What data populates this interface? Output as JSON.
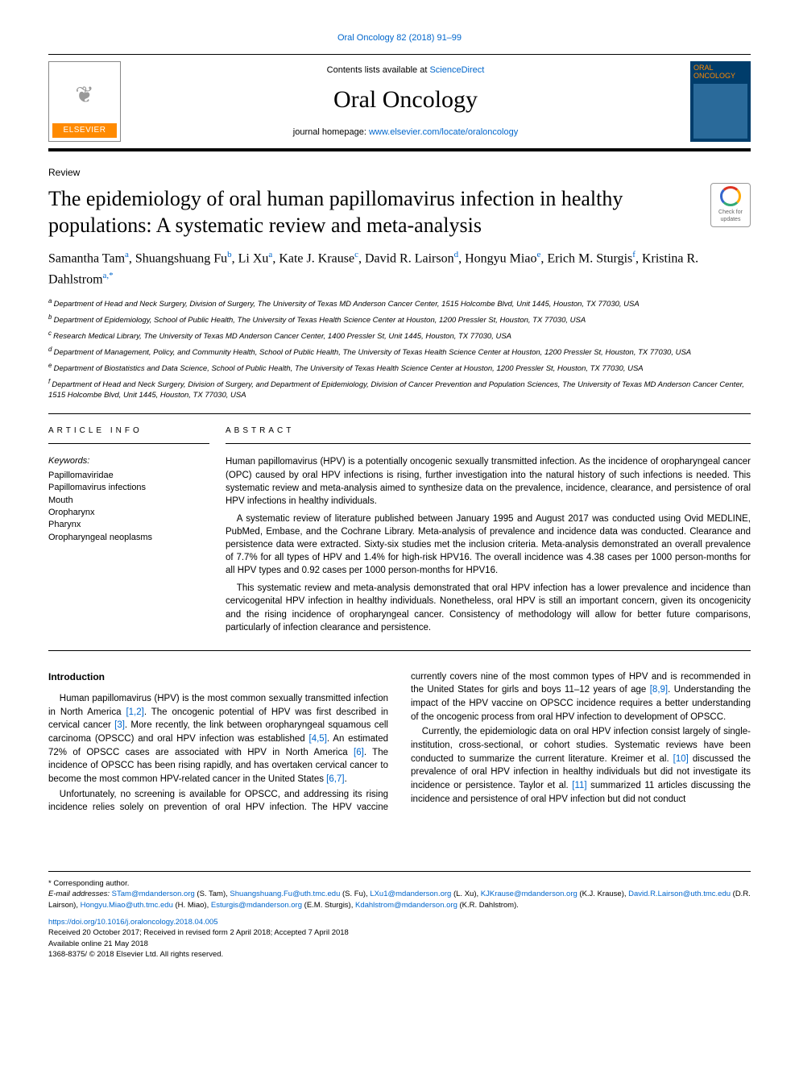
{
  "journal_ref": "Oral Oncology 82 (2018) 91–99",
  "header": {
    "contents_prefix": "Contents lists available at ",
    "contents_link": "ScienceDirect",
    "journal_name": "Oral Oncology",
    "homepage_prefix": "journal homepage: ",
    "homepage_url": "www.elsevier.com/locate/oraloncology",
    "elsevier": "ELSEVIER",
    "cover_title": "ORAL ONCOLOGY"
  },
  "article_type": "Review",
  "title": "The epidemiology of oral human papillomavirus infection in healthy populations: A systematic review and meta-analysis",
  "crossmark": "Check for updates",
  "authors": [
    {
      "name": "Samantha Tam",
      "aff": "a"
    },
    {
      "name": "Shuangshuang Fu",
      "aff": "b"
    },
    {
      "name": "Li Xu",
      "aff": "a"
    },
    {
      "name": "Kate J. Krause",
      "aff": "c"
    },
    {
      "name": "David R. Lairson",
      "aff": "d"
    },
    {
      "name": "Hongyu Miao",
      "aff": "e"
    },
    {
      "name": "Erich M. Sturgis",
      "aff": "f"
    },
    {
      "name": "Kristina R. Dahlstrom",
      "aff": "a,*"
    }
  ],
  "affiliations": {
    "a": "Department of Head and Neck Surgery, Division of Surgery, The University of Texas MD Anderson Cancer Center, 1515 Holcombe Blvd, Unit 1445, Houston, TX 77030, USA",
    "b": "Department of Epidemiology, School of Public Health, The University of Texas Health Science Center at Houston, 1200 Pressler St, Houston, TX 77030, USA",
    "c": "Research Medical Library, The University of Texas MD Anderson Cancer Center, 1400 Pressler St, Unit 1445, Houston, TX 77030, USA",
    "d": "Department of Management, Policy, and Community Health, School of Public Health, The University of Texas Health Science Center at Houston, 1200 Pressler St, Houston, TX 77030, USA",
    "e": "Department of Biostatistics and Data Science, School of Public Health, The University of Texas Health Science Center at Houston, 1200 Pressler St, Houston, TX 77030, USA",
    "f": "Department of Head and Neck Surgery, Division of Surgery, and Department of Epidemiology, Division of Cancer Prevention and Population Sciences, The University of Texas MD Anderson Cancer Center, 1515 Holcombe Blvd, Unit 1445, Houston, TX 77030, USA"
  },
  "article_info_heading": "ARTICLE INFO",
  "keywords_label": "Keywords:",
  "keywords": [
    "Papillomaviridae",
    "Papillomavirus infections",
    "Mouth",
    "Oropharynx",
    "Pharynx",
    "Oropharyngeal neoplasms"
  ],
  "abstract_heading": "ABSTRACT",
  "abstract": [
    "Human papillomavirus (HPV) is a potentially oncogenic sexually transmitted infection. As the incidence of oropharyngeal cancer (OPC) caused by oral HPV infections is rising, further investigation into the natural history of such infections is needed. This systematic review and meta-analysis aimed to synthesize data on the prevalence, incidence, clearance, and persistence of oral HPV infections in healthy individuals.",
    "A systematic review of literature published between January 1995 and August 2017 was conducted using Ovid MEDLINE, PubMed, Embase, and the Cochrane Library. Meta-analysis of prevalence and incidence data was conducted. Clearance and persistence data were extracted. Sixty-six studies met the inclusion criteria. Meta-analysis demonstrated an overall prevalence of 7.7% for all types of HPV and 1.4% for high-risk HPV16. The overall incidence was 4.38 cases per 1000 person-months for all HPV types and 0.92 cases per 1000 person-months for HPV16.",
    "This systematic review and meta-analysis demonstrated that oral HPV infection has a lower prevalence and incidence than cervicogenital HPV infection in healthy individuals. Nonetheless, oral HPV is still an important concern, given its oncogenicity and the rising incidence of oropharyngeal cancer. Consistency of methodology will allow for better future comparisons, particularly of infection clearance and persistence."
  ],
  "intro_heading": "Introduction",
  "intro": {
    "p1a": "Human papillomavirus (HPV) is the most common sexually transmitted infection in North America ",
    "r1": "[1,2]",
    "p1b": ". The oncogenic potential of HPV was first described in cervical cancer ",
    "r2": "[3]",
    "p1c": ". More recently, the link between oropharyngeal squamous cell carcinoma (OPSCC) and oral HPV infection was established ",
    "r3": "[4,5]",
    "p1d": ". An estimated 72% of OPSCC cases are associated with HPV in North America ",
    "r4": "[6]",
    "p1e": ". The incidence of OPSCC has been rising rapidly, and has overtaken cervical cancer to become the most common HPV-related cancer in the United States ",
    "r5": "[6,7]",
    "p1f": ".",
    "p2a": "Unfortunately, no screening is available for OPSCC, and addressing its rising incidence relies solely on prevention of oral HPV infection. The HPV vaccine currently covers nine of the most common types of HPV and is recommended in the United States for girls and boys 11–12 years of age ",
    "r6": "[8,9]",
    "p2b": ". Understanding the impact of the HPV vaccine on OPSCC incidence requires a better understanding of the oncogenic process from oral HPV infection to development of OPSCC.",
    "p3a": "Currently, the epidemiologic data on oral HPV infection consist largely of single-institution, cross-sectional, or cohort studies. Systematic reviews have been conducted to summarize the current literature. Kreimer et al. ",
    "r7": "[10]",
    "p3b": " discussed the prevalence of oral HPV infection in healthy individuals but did not investigate its incidence or persistence. Taylor et al. ",
    "r8": "[11]",
    "p3c": " summarized 11 articles discussing the incidence and persistence of oral HPV infection but did not conduct"
  },
  "footer": {
    "corresponding": "* Corresponding author.",
    "email_label": "E-mail addresses: ",
    "emails": [
      {
        "addr": "STam@mdanderson.org",
        "who": " (S. Tam), "
      },
      {
        "addr": "Shuangshuang.Fu@uth.tmc.edu",
        "who": " (S. Fu), "
      },
      {
        "addr": "LXu1@mdanderson.org",
        "who": " (L. Xu), "
      },
      {
        "addr": "KJKrause@mdanderson.org",
        "who": " (K.J. Krause), "
      },
      {
        "addr": "David.R.Lairson@uth.tmc.edu",
        "who": " (D.R. Lairson), "
      },
      {
        "addr": "Hongyu.Miao@uth.tmc.edu",
        "who": " (H. Miao), "
      },
      {
        "addr": "Esturgis@mdanderson.org",
        "who": " (E.M. Sturgis), "
      },
      {
        "addr": "Kdahlstrom@mdanderson.org",
        "who": " (K.R. Dahlstrom)."
      }
    ],
    "doi": "https://doi.org/10.1016/j.oraloncology.2018.04.005",
    "received": "Received 20 October 2017; Received in revised form 2 April 2018; Accepted 7 April 2018",
    "online": "Available online 21 May 2018",
    "issn": "1368-8375/ © 2018 Elsevier Ltd. All rights reserved."
  }
}
